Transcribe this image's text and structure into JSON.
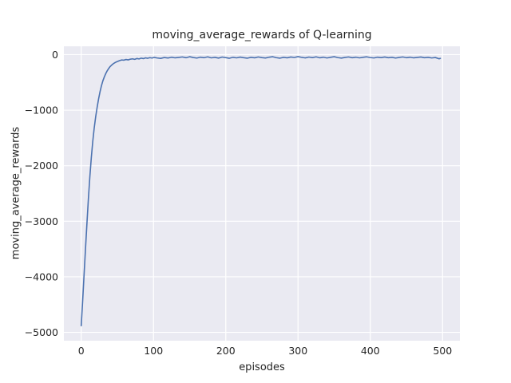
{
  "chart_data": {
    "type": "line",
    "title": "moving_average_rewards of Q-learning",
    "xlabel": "episodes",
    "ylabel": "moving_average_rewards",
    "xlim": [
      -24,
      524
    ],
    "ylim": [
      -5150,
      150
    ],
    "grid": true,
    "legend": "none",
    "xticks": [
      0,
      100,
      200,
      300,
      400,
      500
    ],
    "xtick_labels": [
      "0",
      "100",
      "200",
      "300",
      "400",
      "500"
    ],
    "yticks": [
      0,
      -1000,
      -2000,
      -3000,
      -4000,
      -5000
    ],
    "ytick_labels": [
      "0",
      "−1000",
      "−2000",
      "−3000",
      "−4000",
      "−5000"
    ],
    "series": [
      {
        "name": "moving_average_rewards",
        "points": [
          [
            0,
            -4880
          ],
          [
            2,
            -4430
          ],
          [
            4,
            -3950
          ],
          [
            6,
            -3480
          ],
          [
            8,
            -3020
          ],
          [
            10,
            -2580
          ],
          [
            12,
            -2190
          ],
          [
            14,
            -1850
          ],
          [
            16,
            -1560
          ],
          [
            18,
            -1320
          ],
          [
            20,
            -1120
          ],
          [
            22,
            -950
          ],
          [
            24,
            -800
          ],
          [
            26,
            -670
          ],
          [
            28,
            -560
          ],
          [
            30,
            -470
          ],
          [
            32,
            -400
          ],
          [
            34,
            -340
          ],
          [
            36,
            -290
          ],
          [
            38,
            -250
          ],
          [
            40,
            -215
          ],
          [
            42,
            -190
          ],
          [
            44,
            -168
          ],
          [
            46,
            -150
          ],
          [
            48,
            -136
          ],
          [
            50,
            -124
          ],
          [
            53,
            -108
          ],
          [
            56,
            -96
          ],
          [
            59,
            -100
          ],
          [
            62,
            -88
          ],
          [
            65,
            -95
          ],
          [
            68,
            -82
          ],
          [
            71,
            -76
          ],
          [
            74,
            -85
          ],
          [
            77,
            -70
          ],
          [
            80,
            -78
          ],
          [
            83,
            -64
          ],
          [
            86,
            -72
          ],
          [
            89,
            -58
          ],
          [
            92,
            -66
          ],
          [
            95,
            -55
          ],
          [
            98,
            -62
          ],
          [
            101,
            -50
          ],
          [
            105,
            -60
          ],
          [
            110,
            -68
          ],
          [
            115,
            -52
          ],
          [
            120,
            -61
          ],
          [
            125,
            -47
          ],
          [
            130,
            -58
          ],
          [
            135,
            -50
          ],
          [
            140,
            -42
          ],
          [
            145,
            -56
          ],
          [
            150,
            -38
          ],
          [
            155,
            -52
          ],
          [
            160,
            -62
          ],
          [
            165,
            -46
          ],
          [
            170,
            -55
          ],
          [
            175,
            -40
          ],
          [
            180,
            -58
          ],
          [
            185,
            -48
          ],
          [
            190,
            -63
          ],
          [
            195,
            -44
          ],
          [
            200,
            -54
          ],
          [
            205,
            -66
          ],
          [
            210,
            -48
          ],
          [
            215,
            -58
          ],
          [
            220,
            -45
          ],
          [
            225,
            -56
          ],
          [
            230,
            -64
          ],
          [
            235,
            -48
          ],
          [
            240,
            -57
          ],
          [
            245,
            -42
          ],
          [
            250,
            -54
          ],
          [
            255,
            -61
          ],
          [
            260,
            -46
          ],
          [
            265,
            -38
          ],
          [
            270,
            -55
          ],
          [
            275,
            -64
          ],
          [
            280,
            -48
          ],
          [
            285,
            -57
          ],
          [
            290,
            -43
          ],
          [
            295,
            -51
          ],
          [
            300,
            -36
          ],
          [
            305,
            -49
          ],
          [
            310,
            -59
          ],
          [
            315,
            -44
          ],
          [
            320,
            -54
          ],
          [
            325,
            -40
          ],
          [
            330,
            -57
          ],
          [
            335,
            -46
          ],
          [
            340,
            -60
          ],
          [
            345,
            -48
          ],
          [
            350,
            -38
          ],
          [
            355,
            -53
          ],
          [
            360,
            -63
          ],
          [
            365,
            -50
          ],
          [
            370,
            -42
          ],
          [
            375,
            -56
          ],
          [
            380,
            -46
          ],
          [
            385,
            -58
          ],
          [
            390,
            -48
          ],
          [
            395,
            -40
          ],
          [
            400,
            -53
          ],
          [
            405,
            -60
          ],
          [
            410,
            -46
          ],
          [
            415,
            -54
          ],
          [
            420,
            -43
          ],
          [
            425,
            -56
          ],
          [
            430,
            -48
          ],
          [
            435,
            -62
          ],
          [
            440,
            -50
          ],
          [
            445,
            -42
          ],
          [
            450,
            -55
          ],
          [
            455,
            -46
          ],
          [
            460,
            -58
          ],
          [
            465,
            -50
          ],
          [
            470,
            -43
          ],
          [
            475,
            -56
          ],
          [
            480,
            -48
          ],
          [
            485,
            -60
          ],
          [
            490,
            -52
          ],
          [
            495,
            -75
          ],
          [
            497,
            -68
          ]
        ]
      }
    ],
    "colors": {
      "line": "#4c72b0",
      "plot_background": "#eaeaf2",
      "grid": "#ffffff",
      "text": "#262626",
      "figure_background": "#ffffff"
    }
  }
}
